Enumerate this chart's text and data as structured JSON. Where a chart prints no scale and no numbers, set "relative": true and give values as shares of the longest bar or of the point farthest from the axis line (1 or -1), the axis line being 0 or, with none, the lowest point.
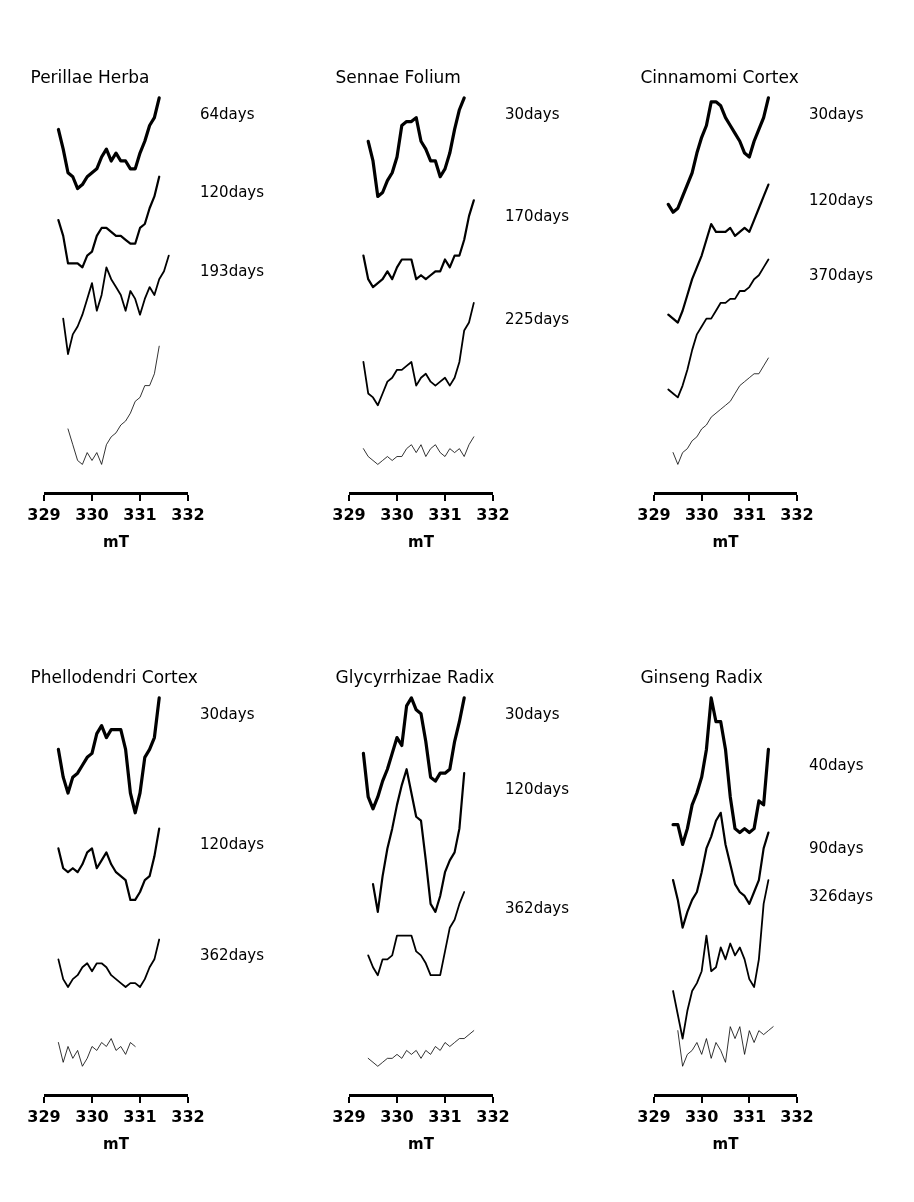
{
  "chart_data": [
    {
      "type": "line",
      "title": "Perillae Herba",
      "xlabel": "mT",
      "relative": true,
      "legend": false,
      "line_style": "solid",
      "xlim": [
        329,
        332
      ],
      "xticks": [
        329,
        330,
        331,
        332
      ],
      "x": [
        329.3,
        329.4,
        329.5,
        329.6,
        329.7,
        329.8,
        329.9,
        330.0,
        330.1,
        330.2,
        330.3,
        330.4,
        330.5,
        330.6,
        330.7,
        330.8,
        330.9,
        331.0,
        331.1,
        331.2,
        331.3,
        331.4,
        331.5,
        331.6
      ],
      "series": [
        {
          "name": "64days",
          "color": "#000000",
          "values": [
            0.92,
            0.87,
            0.81,
            0.8,
            0.77,
            0.78,
            0.8,
            0.81,
            0.82,
            0.85,
            0.87,
            0.84,
            0.86,
            0.84,
            0.84,
            0.82,
            0.82,
            0.86,
            0.89,
            0.93,
            0.95,
            1.0,
            null,
            null
          ]
        },
        {
          "name": "120days",
          "color": "#000000",
          "values": [
            0.69,
            0.65,
            0.58,
            0.58,
            0.58,
            0.57,
            0.6,
            0.61,
            0.65,
            0.67,
            0.67,
            0.66,
            0.65,
            0.65,
            0.64,
            0.63,
            0.63,
            0.67,
            0.68,
            0.72,
            0.75,
            0.8,
            null,
            null
          ]
        },
        {
          "name": "193days",
          "color": "#000000",
          "values": [
            null,
            0.44,
            0.35,
            0.4,
            0.42,
            0.45,
            0.49,
            0.53,
            0.46,
            0.5,
            0.57,
            0.54,
            0.52,
            0.5,
            0.46,
            0.51,
            0.49,
            0.45,
            0.49,
            0.52,
            0.5,
            0.54,
            0.56,
            0.6
          ]
        },
        {
          "color": "#000000",
          "values": [
            null,
            null,
            0.16,
            0.12,
            0.08,
            0.07,
            0.1,
            0.08,
            0.1,
            0.07,
            0.12,
            0.14,
            0.15,
            0.17,
            0.18,
            0.2,
            0.23,
            0.24,
            0.27,
            0.27,
            0.3,
            0.37,
            null,
            null
          ]
        }
      ]
    },
    {
      "type": "line",
      "title": "Sennae Folium",
      "xlabel": "mT",
      "relative": true,
      "legend": false,
      "line_style": "solid",
      "xlim": [
        329,
        332
      ],
      "xticks": [
        329,
        330,
        331,
        332
      ],
      "x": [
        329.3,
        329.4,
        329.5,
        329.6,
        329.7,
        329.8,
        329.9,
        330.0,
        330.1,
        330.2,
        330.3,
        330.4,
        330.5,
        330.6,
        330.7,
        330.8,
        330.9,
        331.0,
        331.1,
        331.2,
        331.3,
        331.4,
        331.5,
        331.6
      ],
      "series": [
        {
          "name": "30days",
          "color": "#000000",
          "values": [
            null,
            0.89,
            0.84,
            0.75,
            0.76,
            0.79,
            0.81,
            0.85,
            0.93,
            0.94,
            0.94,
            0.95,
            0.89,
            0.87,
            0.84,
            0.84,
            0.8,
            0.82,
            0.86,
            0.92,
            0.97,
            1.0,
            null,
            null
          ]
        },
        {
          "name": "170days",
          "color": "#000000",
          "values": [
            0.6,
            0.54,
            0.52,
            0.53,
            0.54,
            0.56,
            0.54,
            0.57,
            0.59,
            0.59,
            0.59,
            0.54,
            0.55,
            0.54,
            0.55,
            0.56,
            0.56,
            0.59,
            0.57,
            0.6,
            0.6,
            0.64,
            0.7,
            0.74
          ]
        },
        {
          "name": "225days",
          "color": "#000000",
          "values": [
            0.33,
            0.25,
            0.24,
            0.22,
            0.25,
            0.28,
            0.29,
            0.31,
            0.31,
            0.32,
            0.33,
            0.27,
            0.29,
            0.3,
            0.28,
            0.27,
            0.28,
            0.29,
            0.27,
            0.29,
            0.33,
            0.41,
            0.43,
            0.48
          ]
        },
        {
          "color": "#000000",
          "values": [
            0.11,
            0.09,
            0.08,
            0.07,
            0.08,
            0.09,
            0.08,
            0.09,
            0.09,
            0.11,
            0.12,
            0.1,
            0.12,
            0.09,
            0.11,
            0.12,
            0.1,
            0.09,
            0.11,
            0.1,
            0.11,
            0.09,
            0.12,
            0.14
          ]
        }
      ]
    },
    {
      "type": "line",
      "title": "Cinnamomi Cortex",
      "xlabel": "mT",
      "relative": true,
      "legend": false,
      "line_style": "solid",
      "xlim": [
        329,
        332
      ],
      "xticks": [
        329,
        330,
        331,
        332
      ],
      "x": [
        329.3,
        329.4,
        329.5,
        329.6,
        329.7,
        329.8,
        329.9,
        330.0,
        330.1,
        330.2,
        330.3,
        330.4,
        330.5,
        330.6,
        330.7,
        330.8,
        330.9,
        331.0,
        331.1,
        331.2,
        331.3,
        331.4
      ],
      "series": [
        {
          "name": "30days",
          "color": "#000000",
          "values": [
            0.73,
            0.71,
            0.72,
            0.75,
            0.78,
            0.81,
            0.86,
            0.9,
            0.93,
            0.99,
            0.99,
            0.98,
            0.95,
            0.93,
            0.91,
            0.89,
            0.86,
            0.85,
            0.89,
            0.92,
            0.95,
            1.0
          ]
        },
        {
          "name": "120days",
          "color": "#000000",
          "values": [
            0.45,
            0.44,
            0.43,
            0.46,
            0.5,
            0.54,
            0.57,
            0.6,
            0.64,
            0.68,
            0.66,
            0.66,
            0.66,
            0.67,
            0.65,
            0.66,
            0.67,
            0.66,
            0.69,
            0.72,
            0.75,
            0.78
          ]
        },
        {
          "name": "370days",
          "color": "#000000",
          "values": [
            0.26,
            0.25,
            0.24,
            0.27,
            0.31,
            0.36,
            0.4,
            0.42,
            0.44,
            0.44,
            0.46,
            0.48,
            0.48,
            0.49,
            0.49,
            0.51,
            0.51,
            0.52,
            0.54,
            0.55,
            0.57,
            0.59
          ]
        },
        {
          "color": "#000000",
          "values": [
            null,
            0.1,
            0.07,
            0.1,
            0.11,
            0.13,
            0.14,
            0.16,
            0.17,
            0.19,
            0.2,
            0.21,
            0.22,
            0.23,
            0.25,
            0.27,
            0.28,
            0.29,
            0.3,
            0.3,
            0.32,
            0.34
          ]
        }
      ]
    },
    {
      "type": "line",
      "title": "Phellodendri Cortex",
      "xlabel": "mT",
      "relative": true,
      "legend": false,
      "line_style": "solid",
      "xlim": [
        329,
        332
      ],
      "xticks": [
        329,
        330,
        331,
        332
      ],
      "x": [
        329.3,
        329.4,
        329.5,
        329.6,
        329.7,
        329.8,
        329.9,
        330.0,
        330.1,
        330.2,
        330.3,
        330.4,
        330.5,
        330.6,
        330.7,
        330.8,
        330.9,
        331.0,
        331.1,
        331.2,
        331.3,
        331.4
      ],
      "series": [
        {
          "name": "30days",
          "color": "#000000",
          "values": [
            0.87,
            0.8,
            0.76,
            0.8,
            0.81,
            0.83,
            0.85,
            0.86,
            0.91,
            0.93,
            0.9,
            0.92,
            0.92,
            0.92,
            0.87,
            0.76,
            0.71,
            0.76,
            0.85,
            0.87,
            0.9,
            1.0
          ]
        },
        {
          "name": "120days",
          "color": "#000000",
          "values": [
            0.62,
            0.57,
            0.56,
            0.57,
            0.56,
            0.58,
            0.61,
            0.62,
            0.57,
            0.59,
            0.61,
            0.58,
            0.56,
            0.55,
            0.54,
            0.49,
            0.49,
            0.51,
            0.54,
            0.55,
            0.6,
            0.67
          ]
        },
        {
          "name": "362days",
          "color": "#000000",
          "values": [
            0.34,
            0.29,
            0.27,
            0.29,
            0.3,
            0.32,
            0.33,
            0.31,
            0.33,
            0.33,
            0.32,
            0.3,
            0.29,
            0.28,
            0.27,
            0.28,
            0.28,
            0.27,
            0.29,
            0.32,
            0.34,
            0.39
          ]
        },
        {
          "color": "#000000",
          "values": [
            0.13,
            0.08,
            0.12,
            0.09,
            0.11,
            0.07,
            0.09,
            0.12,
            0.11,
            0.13,
            0.12,
            0.14,
            0.11,
            0.12,
            0.1,
            0.13,
            0.12,
            null,
            null,
            null,
            null,
            null
          ]
        }
      ]
    },
    {
      "type": "line",
      "title": "Glycyrrhizae Radix",
      "xlabel": "mT",
      "relative": true,
      "legend": false,
      "line_style": "solid",
      "xlim": [
        329,
        332
      ],
      "xticks": [
        329,
        330,
        331,
        332
      ],
      "x": [
        329.3,
        329.4,
        329.5,
        329.6,
        329.7,
        329.8,
        329.9,
        330.0,
        330.1,
        330.2,
        330.3,
        330.4,
        330.5,
        330.6,
        330.7,
        330.8,
        330.9,
        331.0,
        331.1,
        331.2,
        331.3,
        331.4,
        331.5,
        331.6
      ],
      "series": [
        {
          "name": "30days",
          "color": "#000000",
          "values": [
            0.86,
            0.75,
            0.72,
            0.75,
            0.79,
            0.82,
            0.86,
            0.9,
            0.88,
            0.98,
            1.0,
            0.97,
            0.96,
            0.89,
            0.8,
            0.79,
            0.81,
            0.81,
            0.82,
            0.89,
            0.94,
            1.0,
            null,
            null
          ]
        },
        {
          "name": "120days",
          "color": "#000000",
          "values": [
            null,
            null,
            0.53,
            0.46,
            0.55,
            0.62,
            0.67,
            0.73,
            0.78,
            0.82,
            0.76,
            0.7,
            0.69,
            0.59,
            0.48,
            0.46,
            0.5,
            0.56,
            0.59,
            0.61,
            0.67,
            0.81,
            null,
            null
          ]
        },
        {
          "name": "362days",
          "color": "#000000",
          "values": [
            null,
            0.35,
            0.32,
            0.3,
            0.34,
            0.34,
            0.35,
            0.4,
            0.4,
            0.4,
            0.4,
            0.36,
            0.35,
            0.33,
            0.3,
            0.3,
            0.3,
            0.36,
            0.42,
            0.44,
            0.48,
            0.51,
            null,
            null
          ]
        },
        {
          "color": "#000000",
          "values": [
            null,
            0.09,
            0.08,
            0.07,
            0.08,
            0.09,
            0.09,
            0.1,
            0.09,
            0.11,
            0.1,
            0.11,
            0.09,
            0.11,
            0.1,
            0.12,
            0.11,
            0.13,
            0.12,
            0.13,
            0.14,
            0.14,
            0.15,
            0.16
          ]
        }
      ]
    },
    {
      "type": "line",
      "title": "Ginseng Radix",
      "xlabel": "mT",
      "relative": true,
      "legend": false,
      "line_style": "solid",
      "xlim": [
        329,
        332
      ],
      "xticks": [
        329,
        330,
        331,
        332
      ],
      "x": [
        329.4,
        329.5,
        329.6,
        329.7,
        329.8,
        329.9,
        330.0,
        330.1,
        330.2,
        330.3,
        330.4,
        330.5,
        330.6,
        330.7,
        330.8,
        330.9,
        331.0,
        331.1,
        331.2,
        331.3,
        331.4,
        331.5
      ],
      "series": [
        {
          "name": "40days",
          "color": "#000000",
          "values": [
            0.68,
            0.68,
            0.63,
            0.67,
            0.73,
            0.76,
            0.8,
            0.87,
            1.0,
            0.94,
            0.94,
            0.87,
            0.75,
            0.67,
            0.66,
            0.67,
            0.66,
            0.67,
            0.74,
            0.73,
            0.87,
            null
          ]
        },
        {
          "name": "90days",
          "color": "#000000",
          "values": [
            0.54,
            0.49,
            0.42,
            0.46,
            0.49,
            0.51,
            0.56,
            0.62,
            0.65,
            0.69,
            0.71,
            0.63,
            0.58,
            0.53,
            0.51,
            0.5,
            0.48,
            0.51,
            0.54,
            0.62,
            0.66,
            null
          ]
        },
        {
          "name": "326days",
          "color": "#000000",
          "values": [
            0.26,
            0.2,
            0.14,
            0.21,
            0.26,
            0.28,
            0.31,
            0.4,
            0.31,
            0.32,
            0.37,
            0.34,
            0.38,
            0.35,
            0.37,
            0.34,
            0.29,
            0.27,
            0.34,
            0.48,
            0.54,
            null
          ]
        },
        {
          "color": "#000000",
          "values": [
            null,
            0.16,
            0.07,
            0.1,
            0.11,
            0.13,
            0.1,
            0.14,
            0.09,
            0.13,
            0.11,
            0.08,
            0.17,
            0.14,
            0.17,
            0.1,
            0.16,
            0.13,
            0.16,
            0.15,
            0.16,
            0.17
          ]
        }
      ]
    }
  ]
}
